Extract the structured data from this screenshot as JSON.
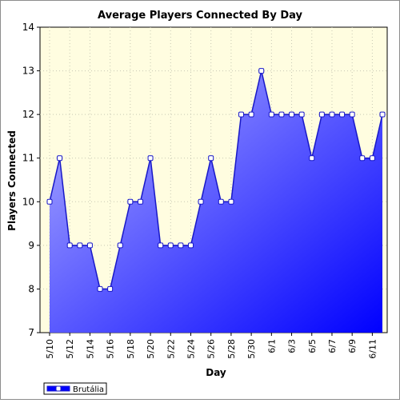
{
  "chart_data": {
    "type": "area",
    "title": "Average Players Connected By Day",
    "xlabel": "Day",
    "ylabel": "Players Connected",
    "ylim": [
      7,
      14
    ],
    "yticks": [
      7,
      8,
      9,
      10,
      11,
      12,
      13,
      14
    ],
    "x": [
      "5/10",
      "5/11",
      "5/12",
      "5/13",
      "5/14",
      "5/15",
      "5/16",
      "5/17",
      "5/18",
      "5/19",
      "5/20",
      "5/21",
      "5/22",
      "5/23",
      "5/24",
      "5/25",
      "5/26",
      "5/27",
      "5/28",
      "5/29",
      "5/30",
      "5/31",
      "6/1",
      "6/2",
      "6/3",
      "6/4",
      "6/5",
      "6/6",
      "6/7",
      "6/8",
      "6/9",
      "6/10",
      "6/11",
      "6/12"
    ],
    "xtick_labels": [
      "5/10",
      "5/12",
      "5/14",
      "5/16",
      "5/18",
      "5/20",
      "5/22",
      "5/24",
      "5/26",
      "5/28",
      "5/30",
      "6/1",
      "6/3",
      "6/5",
      "6/7",
      "6/9",
      "6/11"
    ],
    "series": [
      {
        "name": "Brutália",
        "values": [
          10,
          11,
          9,
          9,
          9,
          8,
          8,
          9,
          10,
          10,
          11,
          9,
          9,
          9,
          9,
          10,
          11,
          10,
          10,
          12,
          12,
          13,
          12,
          12,
          12,
          12,
          11,
          12,
          12,
          12,
          12,
          11,
          11,
          12
        ]
      }
    ],
    "grid": true,
    "legend_position": "bottom-left",
    "colors": {
      "plot_background": "#fffde0",
      "line": "#1818c8",
      "fill_top": "#b4b4ff",
      "fill_bottom": "#0000ff",
      "marker_fill": "#ffffff"
    }
  }
}
